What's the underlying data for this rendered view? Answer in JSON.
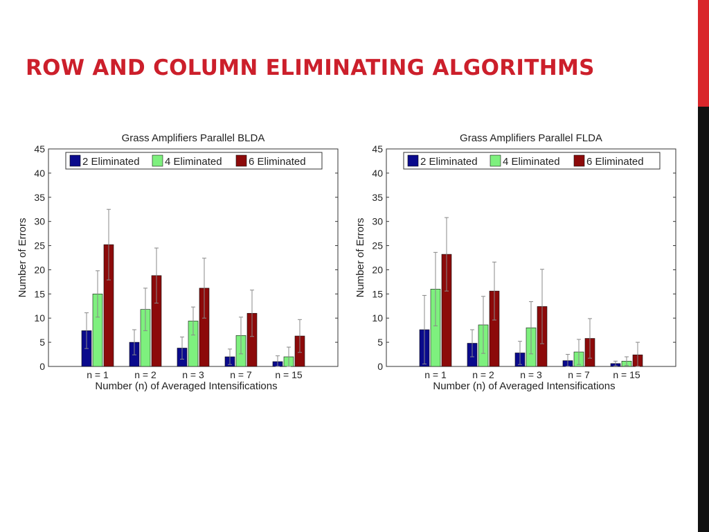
{
  "slide": {
    "title": "ROW AND COLUMN ELIMINATING ALGORITHMS",
    "accent_color": "#cc1f2b",
    "side_bar_colors": [
      "#d9262b",
      "#111111"
    ]
  },
  "chart_data": [
    {
      "type": "bar",
      "title": "Grass Amplifiers Parallel BLDA",
      "xlabel": "Number (n) of Averaged Intensifications",
      "ylabel": "Number of Errors",
      "ylim": [
        0,
        45
      ],
      "yticks": [
        0,
        5,
        10,
        15,
        20,
        25,
        30,
        35,
        40,
        45
      ],
      "categories": [
        "n = 1",
        "n = 2",
        "n = 3",
        "n = 7",
        "n = 15"
      ],
      "legend_position": "top",
      "grid": false,
      "series": [
        {
          "name": "2 Eliminated",
          "color": "#0a0a8c",
          "values": [
            7.4,
            5.0,
            3.8,
            2.0,
            1.0
          ],
          "errors": [
            3.7,
            2.6,
            2.3,
            1.6,
            1.2
          ]
        },
        {
          "name": "4 Eliminated",
          "color": "#7ef07e",
          "values": [
            15.0,
            11.8,
            9.4,
            6.4,
            2.0
          ],
          "errors": [
            4.8,
            4.4,
            2.9,
            3.8,
            2.0
          ]
        },
        {
          "name": "6 Eliminated",
          "color": "#8c0a0a",
          "values": [
            25.2,
            18.8,
            16.2,
            11.0,
            6.3
          ],
          "errors": [
            7.3,
            5.7,
            6.2,
            4.8,
            3.4
          ]
        }
      ]
    },
    {
      "type": "bar",
      "title": "Grass Amplifiers Parallel FLDA",
      "xlabel": "Number (n) of Averaged Intensifications",
      "ylabel": "Number of Errors",
      "ylim": [
        0,
        45
      ],
      "yticks": [
        0,
        5,
        10,
        15,
        20,
        25,
        30,
        35,
        40,
        45
      ],
      "categories": [
        "n = 1",
        "n = 2",
        "n = 3",
        "n = 7",
        "n = 15"
      ],
      "legend_position": "top",
      "grid": false,
      "series": [
        {
          "name": "2 Eliminated",
          "color": "#0a0a8c",
          "values": [
            7.6,
            4.8,
            2.8,
            1.2,
            0.6
          ],
          "errors": [
            7.1,
            2.8,
            2.4,
            1.3,
            0.5
          ]
        },
        {
          "name": "4 Eliminated",
          "color": "#7ef07e",
          "values": [
            16.0,
            8.6,
            8.0,
            3.0,
            1.1
          ],
          "errors": [
            7.6,
            5.9,
            5.4,
            2.6,
            0.9
          ]
        },
        {
          "name": "6 Eliminated",
          "color": "#8c0a0a",
          "values": [
            23.2,
            15.6,
            12.4,
            5.8,
            2.4
          ],
          "errors": [
            7.6,
            6.0,
            7.7,
            4.1,
            2.6
          ]
        }
      ]
    }
  ]
}
